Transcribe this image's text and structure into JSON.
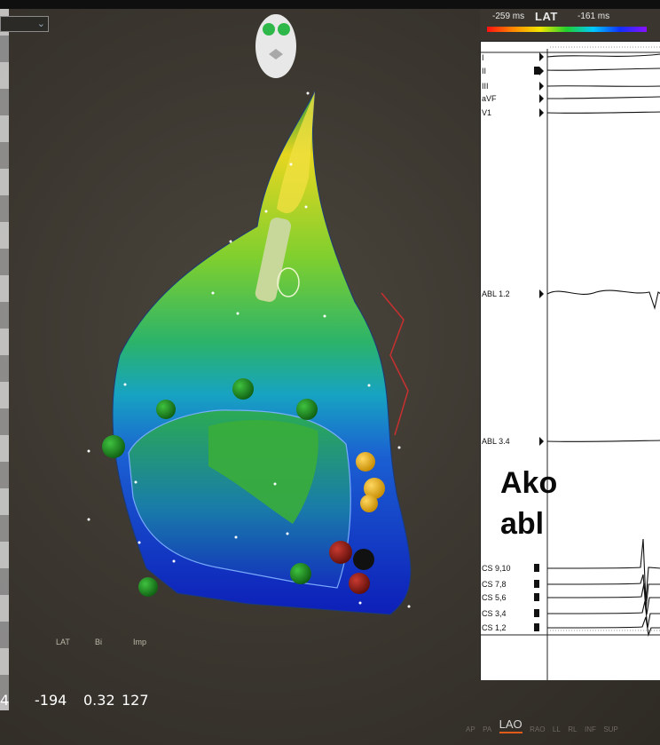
{
  "lat_scale": {
    "min_label": "-259 ms",
    "title": "LAT",
    "max_label": "-161 ms"
  },
  "channels": [
    {
      "id": "I",
      "label": "I"
    },
    {
      "id": "II",
      "label": "II"
    },
    {
      "id": "III",
      "label": "III"
    },
    {
      "id": "aVF",
      "label": "aVF"
    },
    {
      "id": "V1",
      "label": "V1"
    },
    {
      "id": "ABL12",
      "label": "ABL 1.2"
    },
    {
      "id": "ABL34",
      "label": "ABL 3.4"
    },
    {
      "id": "CS910",
      "label": "CS 9,10"
    },
    {
      "id": "CS78",
      "label": "CS 7,8"
    },
    {
      "id": "CS56",
      "label": "CS 5,6"
    },
    {
      "id": "CS34",
      "label": "CS 3,4"
    },
    {
      "id": "CS12",
      "label": "CS 1,2"
    }
  ],
  "callout": {
    "line1": "Ako",
    "line2": "abl"
  },
  "stats": {
    "headers": [
      "LAT",
      "Bi",
      "Imp"
    ],
    "point_prefix": "4",
    "lat_value": "-194",
    "bi_value": "0.32",
    "imp_value": "127"
  },
  "view_tabs": [
    "AP",
    "PA",
    "LAO",
    "RAO",
    "LL",
    "RL",
    "INF",
    "SUP"
  ],
  "active_view": "LAO",
  "colors": {
    "background": "#3a362f",
    "map_green": "#2fb84a",
    "map_blue": "#1430c8",
    "map_yellow": "#e8e020",
    "active_tab_underline": "#e05a1a"
  }
}
